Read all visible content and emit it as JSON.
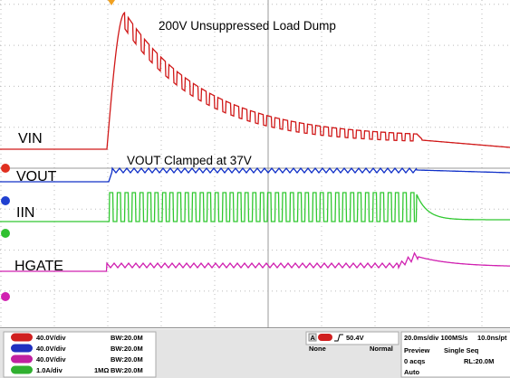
{
  "annotations": {
    "title": "200V Unsuppressed Load Dump",
    "vout_note": "VOUT Clamped at 37V"
  },
  "traces": [
    {
      "label": "VIN"
    },
    {
      "label": "VOUT"
    },
    {
      "label": "IIN"
    },
    {
      "label": "HGATE"
    }
  ],
  "channels": [
    {
      "scale": "40.0V/div",
      "bandwidth": "BW:20.0M"
    },
    {
      "scale": "40.0V/div",
      "bandwidth": "BW:20.0M"
    },
    {
      "scale": "40.0V/div",
      "bandwidth": "BW:20.0M"
    },
    {
      "scale": "1.0A/div",
      "impedance": "1MΩ",
      "bandwidth": "BW:20.0M"
    }
  ],
  "trigger": {
    "source": "A",
    "level": "50.4V",
    "coupling": "None",
    "mode": "Normal"
  },
  "timebase": {
    "rate": "20.0ms/div 100MS/s",
    "resolution": "10.0ns/pt",
    "state": "Preview",
    "mode": "Single Seq",
    "record_length": "RL:20.0M",
    "acquisitions": "0 acqs",
    "trigger_mode": "Auto"
  }
}
